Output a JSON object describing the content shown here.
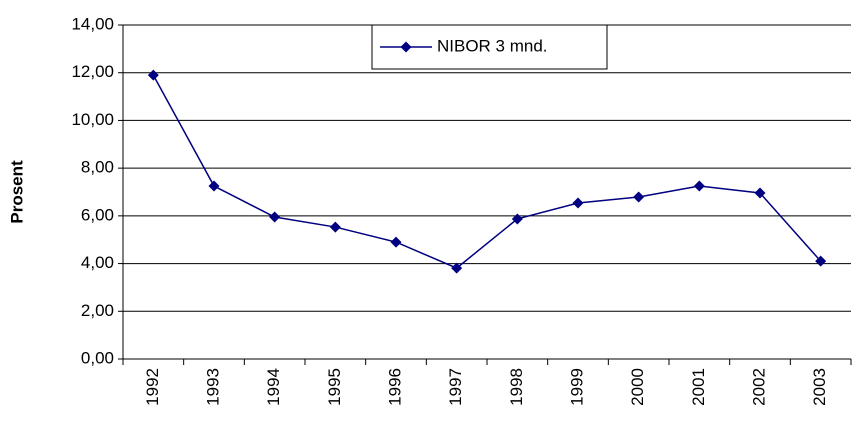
{
  "chart_data": {
    "type": "line",
    "y_label": "Prosent",
    "categories": [
      "1992",
      "1993",
      "1994",
      "1995",
      "1996",
      "1997",
      "1998",
      "1999",
      "2000",
      "2001",
      "2002",
      "2003"
    ],
    "series": [
      {
        "name": "NIBOR 3 mnd.",
        "color": "#000080",
        "values": [
          11.9,
          7.25,
          5.95,
          5.53,
          4.9,
          3.81,
          5.87,
          6.54,
          6.79,
          7.25,
          6.96,
          4.1
        ]
      }
    ],
    "ylim": [
      0,
      14
    ],
    "yticks": [
      {
        "value": 0,
        "label": "0,00"
      },
      {
        "value": 2,
        "label": "2,00"
      },
      {
        "value": 4,
        "label": "4,00"
      },
      {
        "value": 6,
        "label": "6,00"
      },
      {
        "value": 8,
        "label": "8,00"
      },
      {
        "value": 10,
        "label": "10,00"
      },
      {
        "value": 12,
        "label": "12,00"
      },
      {
        "value": 14,
        "label": "14,00"
      }
    ],
    "grid": true,
    "legend": "top"
  }
}
